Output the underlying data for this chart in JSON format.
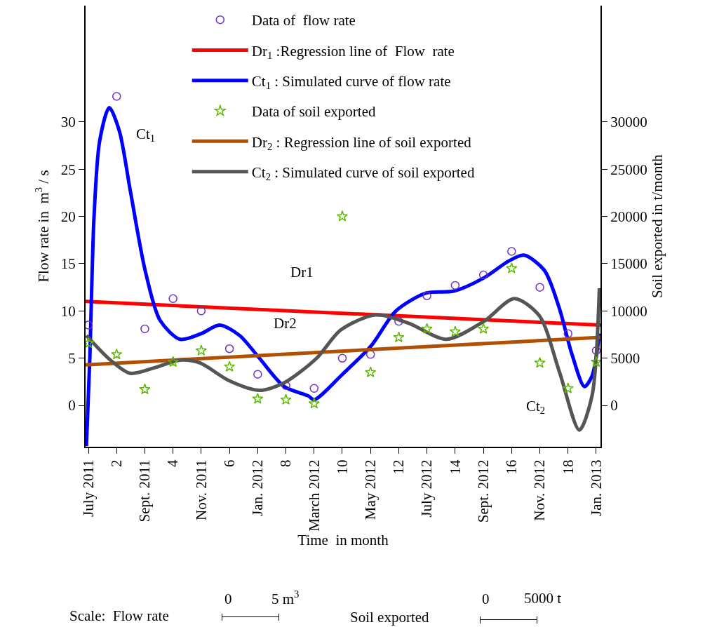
{
  "chart_data": {
    "type": "line",
    "xlabel": "Time  in month",
    "ylabel": "Flow rate in  m$^{3}$ / s",
    "y2label": "Soil exported in t/month",
    "xlim": [
      0.9,
      19.15
    ],
    "ylim": [
      -4.37,
      42.3
    ],
    "y2lim": [
      -4370,
      42300
    ],
    "xticks": [
      {
        "value": 1,
        "label": "July 2011"
      },
      2,
      {
        "value": 3,
        "label": "Sept. 2011"
      },
      4,
      {
        "value": 5,
        "label": "Nov. 2011"
      },
      6,
      {
        "value": 7,
        "label": "Jan. 2012"
      },
      8,
      {
        "value": 9,
        "label": "March 2012"
      },
      10,
      {
        "value": 11,
        "label": "May 2012"
      },
      12,
      {
        "value": 13,
        "label": "July 2012"
      },
      14,
      {
        "value": 15,
        "label": "Sept. 2012"
      },
      16,
      {
        "value": 17,
        "label": "Nov. 2012"
      },
      18,
      {
        "value": 19,
        "label": "Jan. 2013"
      }
    ],
    "yticks": [
      0,
      5,
      10,
      15,
      20,
      25,
      30
    ],
    "y2ticks": [
      0,
      5000,
      10000,
      15000,
      20000,
      25000,
      30000
    ],
    "grid": false,
    "legend": "top",
    "series": [
      {
        "name": "Data of  flow rate",
        "type": "scatter",
        "marker": "circle",
        "color": "#7030c0",
        "x": [
          1,
          2,
          3,
          4,
          5,
          6,
          7,
          8,
          9,
          10,
          11,
          12,
          13,
          14,
          15,
          16,
          17,
          18,
          19
        ],
        "values": [
          8.5,
          32.7,
          8.1,
          11.3,
          10.0,
          6.0,
          3.3,
          2.1,
          1.8,
          5.0,
          5.4,
          8.9,
          11.6,
          12.7,
          13.8,
          16.3,
          12.5,
          7.6,
          5.8
        ]
      },
      {
        "name": "Dr$_{1}$ :Regression line of  Flow  rate",
        "marker": "none",
        "color": "#ff0000",
        "x": [
          0.9,
          19.15
        ],
        "values": [
          11.0,
          8.5
        ]
      },
      {
        "name": "Ct$_{1}$ : Simulated curve of flow rate",
        "marker": "none",
        "color": "#0000ff",
        "x": [
          0.93,
          1.05,
          1.2,
          1.4,
          1.74,
          2.1,
          2.48,
          3.01,
          3.54,
          4.25,
          5.0,
          5.65,
          6.36,
          7.06,
          7.94,
          8.8,
          9.0,
          10.04,
          11.02,
          11.9,
          12.98,
          13.95,
          15.02,
          15.91,
          16.44,
          17.16,
          17.69,
          18.13,
          18.58,
          18.85,
          19.11
        ],
        "values": [
          -4.3,
          5,
          20,
          28,
          31.5,
          29,
          22.8,
          14.3,
          9.0,
          7.0,
          7.6,
          8.5,
          7.4,
          5.0,
          2.0,
          1.0,
          0.6,
          3.4,
          6.3,
          10.0,
          11.9,
          12.1,
          13.5,
          15.3,
          15.9,
          14.3,
          10.3,
          5.5,
          2.0,
          3.1,
          7.6
        ]
      },
      {
        "name": "Data of soil exported",
        "type": "scatter",
        "marker": "star",
        "color": "#5cb800",
        "axis": "y2",
        "x": [
          1,
          2,
          3,
          4,
          5,
          6,
          7,
          8,
          9,
          10,
          11,
          12,
          13,
          14,
          15,
          16,
          17,
          18,
          19
        ],
        "values": [
          6600,
          5400,
          1700,
          4600,
          5800,
          4100,
          700,
          600,
          200,
          20000,
          3500,
          7200,
          8100,
          7800,
          8100,
          14500,
          4500,
          1800,
          4600
        ]
      },
      {
        "name": "Dr$_{2}$ : Regression line of soil exported",
        "marker": "none",
        "color": "#b05000",
        "axis": "y2",
        "x": [
          0.9,
          19.15
        ],
        "values": [
          4300,
          7200
        ]
      },
      {
        "name": "Ct$_{2}$ : Simulated curve of soil exported",
        "marker": "none",
        "color": "#555555",
        "axis": "y2",
        "x": [
          0.93,
          1.78,
          2.48,
          3.36,
          4.25,
          4.95,
          6.0,
          7.06,
          7.94,
          9.09,
          9.95,
          11.2,
          12.35,
          13.69,
          15.02,
          16.09,
          16.98,
          17.69,
          18.4,
          18.85,
          19.11
        ],
        "values": [
          7400,
          4800,
          3400,
          4000,
          4800,
          4500,
          2600,
          1600,
          2400,
          5000,
          8000,
          9600,
          8700,
          7000,
          8900,
          11300,
          9500,
          3600,
          -2600,
          1000,
          12400
        ]
      }
    ],
    "annotations": [
      "Ct$_{1}$",
      "Dr1",
      "Dr2",
      "Ct$_{2}$",
      "Scale:  Flow rate",
      "0",
      "5 m$^{3}$",
      "Soil exported",
      "0",
      "5000 t"
    ]
  }
}
